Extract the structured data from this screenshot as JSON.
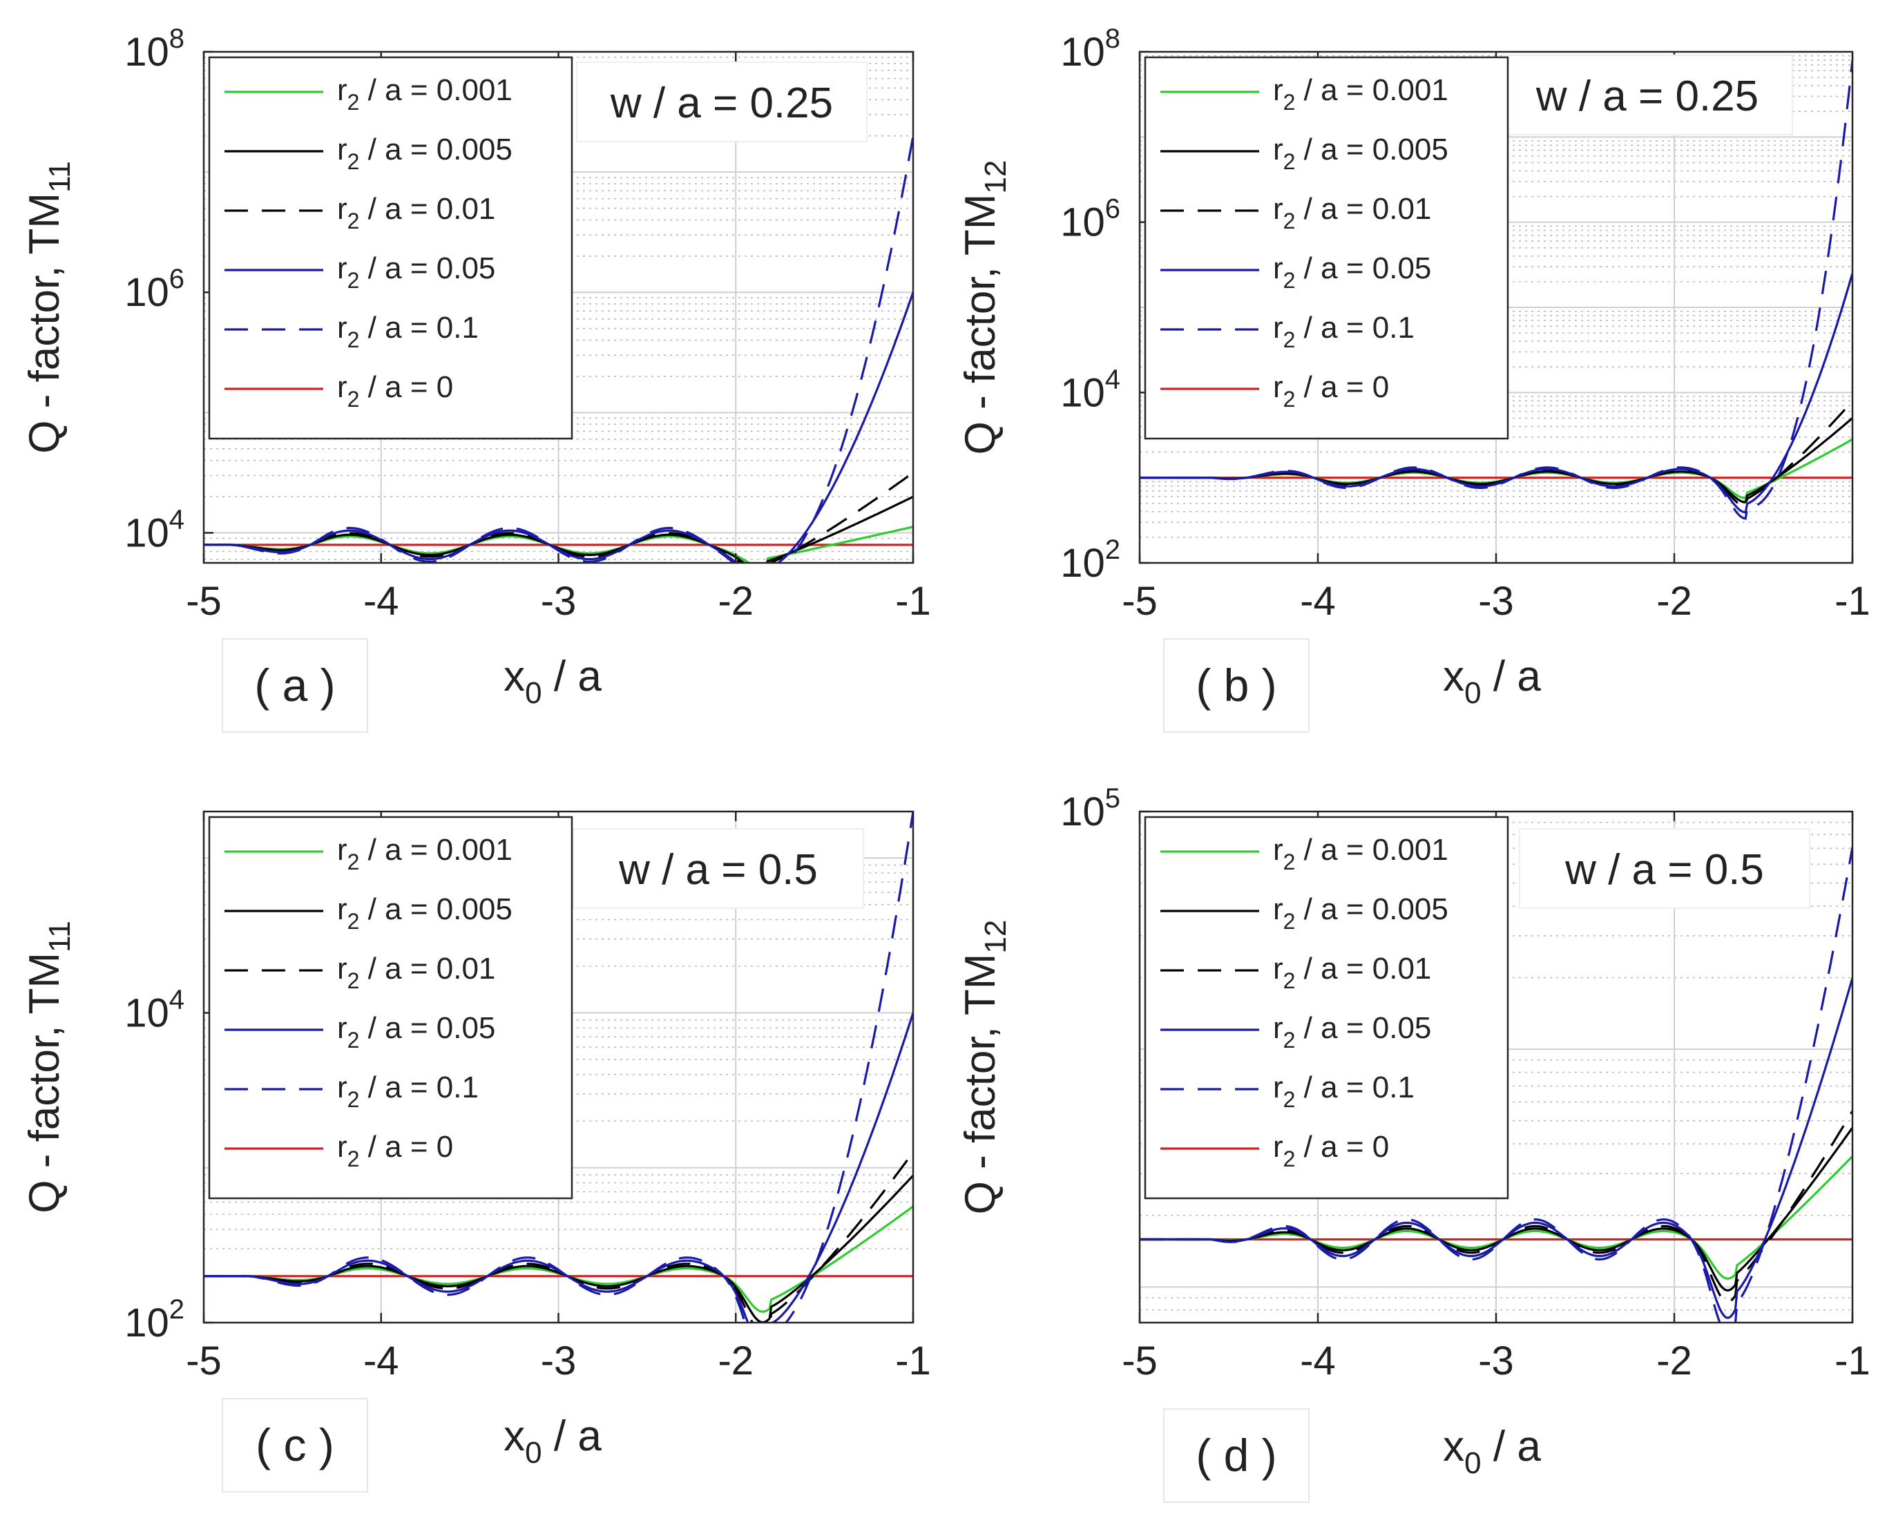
{
  "figure": {
    "panels": [
      {
        "id": "a",
        "panel_label": "( a )",
        "annotation": "w / a = 0.25",
        "ylabel_main": "Q - factor, TM",
        "ylabel_sub": "11",
        "xlabel_main": "x",
        "xlabel_sub": "0",
        "xlabel_tail": " / a",
        "legend": [
          {
            "pre": "r",
            "sub": "2",
            "post": " / a = 0.001",
            "color": "#2ecc2e",
            "dash": "solid"
          },
          {
            "pre": "r",
            "sub": "2",
            "post": " / a = 0.005",
            "color": "#000000",
            "dash": "solid"
          },
          {
            "pre": "r",
            "sub": "2",
            "post": " / a = 0.01",
            "color": "#000000",
            "dash": "dashed"
          },
          {
            "pre": "r",
            "sub": "2",
            "post": " / a = 0.05",
            "color": "#1a1aa8",
            "dash": "solid"
          },
          {
            "pre": "r",
            "sub": "2",
            "post": " / a = 0.1",
            "color": "#1a1aa8",
            "dash": "dashed"
          },
          {
            "pre": "r",
            "sub": "2",
            "post": " / a = 0",
            "color": "#d42020",
            "dash": "solid"
          }
        ]
      },
      {
        "id": "b",
        "panel_label": "( b )",
        "annotation": "w / a = 0.25",
        "ylabel_main": "Q - factor, TM",
        "ylabel_sub": "12",
        "xlabel_main": "x",
        "xlabel_sub": "0",
        "xlabel_tail": " / a",
        "legend": [
          {
            "pre": "r",
            "sub": "2",
            "post": " / a = 0.001",
            "color": "#2ecc2e",
            "dash": "solid"
          },
          {
            "pre": "r",
            "sub": "2",
            "post": " / a = 0.005",
            "color": "#000000",
            "dash": "solid"
          },
          {
            "pre": "r",
            "sub": "2",
            "post": " / a = 0.01",
            "color": "#000000",
            "dash": "dashed"
          },
          {
            "pre": "r",
            "sub": "2",
            "post": " / a = 0.05",
            "color": "#1a1aa8",
            "dash": "solid"
          },
          {
            "pre": "r",
            "sub": "2",
            "post": " / a = 0.1",
            "color": "#1a1aa8",
            "dash": "dashed"
          },
          {
            "pre": "r",
            "sub": "2",
            "post": " / a = 0",
            "color": "#d42020",
            "dash": "solid"
          }
        ]
      },
      {
        "id": "c",
        "panel_label": "( c )",
        "annotation": "w / a = 0.5",
        "ylabel_main": "Q - factor, TM",
        "ylabel_sub": "11",
        "xlabel_main": "x",
        "xlabel_sub": "0",
        "xlabel_tail": " / a",
        "legend": [
          {
            "pre": "r",
            "sub": "2",
            "post": " / a = 0.001",
            "color": "#2ecc2e",
            "dash": "solid"
          },
          {
            "pre": "r",
            "sub": "2",
            "post": " / a = 0.005",
            "color": "#000000",
            "dash": "solid"
          },
          {
            "pre": "r",
            "sub": "2",
            "post": " / a = 0.01",
            "color": "#000000",
            "dash": "dashed"
          },
          {
            "pre": "r",
            "sub": "2",
            "post": " / a = 0.05",
            "color": "#1a1aa8",
            "dash": "solid"
          },
          {
            "pre": "r",
            "sub": "2",
            "post": " / a = 0.1",
            "color": "#1a1aa8",
            "dash": "dashed"
          },
          {
            "pre": "r",
            "sub": "2",
            "post": " / a = 0",
            "color": "#d42020",
            "dash": "solid"
          }
        ]
      },
      {
        "id": "d",
        "panel_label": "( d )",
        "annotation": "w / a = 0.5",
        "ylabel_main": "Q - factor, TM",
        "ylabel_sub": "12",
        "xlabel_main": "x",
        "xlabel_sub": "0",
        "xlabel_tail": " / a",
        "legend": [
          {
            "pre": "r",
            "sub": "2",
            "post": " / a = 0.001",
            "color": "#2ecc2e",
            "dash": "solid"
          },
          {
            "pre": "r",
            "sub": "2",
            "post": " / a = 0.005",
            "color": "#000000",
            "dash": "solid"
          },
          {
            "pre": "r",
            "sub": "2",
            "post": " / a = 0.01",
            "color": "#000000",
            "dash": "dashed"
          },
          {
            "pre": "r",
            "sub": "2",
            "post": " / a = 0.05",
            "color": "#1a1aa8",
            "dash": "solid"
          },
          {
            "pre": "r",
            "sub": "2",
            "post": " / a = 0.1",
            "color": "#1a1aa8",
            "dash": "dashed"
          },
          {
            "pre": "r",
            "sub": "2",
            "post": " / a = 0",
            "color": "#d42020",
            "dash": "solid"
          }
        ]
      }
    ]
  },
  "chart_data": [
    {
      "type": "line",
      "panel": "a",
      "title": "",
      "xlabel": "x0 / a",
      "ylabel": "Q - factor, TM11",
      "xlim": [
        -5,
        -1
      ],
      "ylim_log10": [
        3.75,
        8
      ],
      "yscale": "log",
      "xticks": [
        -5,
        -4,
        -3,
        -2,
        -1
      ],
      "yticks": [
        {
          "exp": 4,
          "base": "10",
          "label": "4"
        },
        {
          "exp": 6,
          "base": "10",
          "label": "6"
        },
        {
          "exp": 8,
          "base": "10",
          "label": "8"
        }
      ],
      "grid": true,
      "legend_position": "top-left",
      "series_params": {
        "base": 3.9,
        "amp": 0.07,
        "period": 0.9,
        "phase": -4.4,
        "wiggle_start": -4.9,
        "end_dip_x": -1.85,
        "end_dip_depth": 0.12,
        "x_rise_start": -1.82
      },
      "series": [
        {
          "name": "r2 / a = 0.001",
          "end_log10": 4.05,
          "wiggle_scale": 1.0
        },
        {
          "name": "r2 / a = 0.005",
          "end_log10": 4.3,
          "wiggle_scale": 1.2
        },
        {
          "name": "r2 / a = 0.01",
          "end_log10": 4.5,
          "wiggle_scale": 1.4
        },
        {
          "name": "r2 / a = 0.05",
          "end_log10": 6.0,
          "wiggle_scale": 1.7
        },
        {
          "name": "r2 / a = 0.1",
          "end_log10": 7.3,
          "wiggle_scale": 2.0
        },
        {
          "name": "r2 / a = 0",
          "end_log10": 3.9,
          "wiggle_scale": 0.0
        }
      ]
    },
    {
      "type": "line",
      "panel": "b",
      "title": "",
      "xlabel": "x0 / a",
      "ylabel": "Q - factor, TM12",
      "xlim": [
        -5,
        -1
      ],
      "ylim_log10": [
        2,
        8
      ],
      "yscale": "log",
      "xticks": [
        -5,
        -4,
        -3,
        -2,
        -1
      ],
      "yticks": [
        {
          "exp": 2,
          "base": "10",
          "label": "2"
        },
        {
          "exp": 4,
          "base": "10",
          "label": "4"
        },
        {
          "exp": 6,
          "base": "10",
          "label": "6"
        },
        {
          "exp": 8,
          "base": "10",
          "label": "8"
        }
      ],
      "grid": true,
      "legend_position": "top-left",
      "series_params": {
        "base": 3.0,
        "amp": 0.06,
        "period": 0.75,
        "phase": -4.4,
        "wiggle_start": -4.6,
        "end_dip_x": -1.6,
        "end_dip_depth": 0.18,
        "x_rise_start": -1.6
      },
      "series": [
        {
          "name": "r2 / a = 0.001",
          "end_log10": 3.45,
          "wiggle_scale": 1.0
        },
        {
          "name": "r2 / a = 0.005",
          "end_log10": 3.7,
          "wiggle_scale": 1.2
        },
        {
          "name": "r2 / a = 0.01",
          "end_log10": 3.9,
          "wiggle_scale": 1.4
        },
        {
          "name": "r2 / a = 0.05",
          "end_log10": 5.4,
          "wiggle_scale": 1.7
        },
        {
          "name": "r2 / a = 0.1",
          "end_log10": 7.9,
          "wiggle_scale": 2.0
        },
        {
          "name": "r2 / a = 0",
          "end_log10": 3.0,
          "wiggle_scale": 0.0
        }
      ]
    },
    {
      "type": "line",
      "panel": "c",
      "title": "",
      "xlabel": "x0 / a",
      "ylabel": "Q - factor, TM11",
      "xlim": [
        -5,
        -1
      ],
      "ylim_log10": [
        2,
        5.3
      ],
      "yscale": "log",
      "xticks": [
        -5,
        -4,
        -3,
        -2,
        -1
      ],
      "yticks": [
        {
          "exp": 2,
          "base": "10",
          "label": "2"
        },
        {
          "exp": 4,
          "base": "10",
          "label": "4"
        }
      ],
      "grid": true,
      "legend_position": "top-left",
      "series_params": {
        "base": 2.3,
        "amp": 0.05,
        "period": 0.9,
        "phase": -4.3,
        "wiggle_start": -4.8,
        "end_dip_x": -1.85,
        "end_dip_depth": 0.18,
        "x_rise_start": -1.8
      },
      "series": [
        {
          "name": "r2 / a = 0.001",
          "end_log10": 2.75,
          "wiggle_scale": 1.0
        },
        {
          "name": "r2 / a = 0.005",
          "end_log10": 2.95,
          "wiggle_scale": 1.3
        },
        {
          "name": "r2 / a = 0.01",
          "end_log10": 3.1,
          "wiggle_scale": 1.6
        },
        {
          "name": "r2 / a = 0.05",
          "end_log10": 4.0,
          "wiggle_scale": 2.0
        },
        {
          "name": "r2 / a = 0.1",
          "end_log10": 5.3,
          "wiggle_scale": 2.4
        },
        {
          "name": "r2 / a = 0",
          "end_log10": 2.3,
          "wiggle_scale": 0.0
        }
      ]
    },
    {
      "type": "line",
      "panel": "d",
      "title": "",
      "xlabel": "x0 / a",
      "ylabel": "Q - factor, TM12",
      "xlim": [
        -5,
        -1
      ],
      "ylim_log10": [
        2.85,
        5
      ],
      "yscale": "log",
      "xticks": [
        -5,
        -4,
        -3,
        -2,
        -1
      ],
      "yticks": [
        {
          "exp": 5,
          "base": "10",
          "label": "5"
        }
      ],
      "grid": true,
      "legend_position": "top-left",
      "series_params": {
        "base": 3.2,
        "amp": 0.035,
        "period": 0.72,
        "phase": -4.4,
        "wiggle_start": -4.6,
        "end_dip_x": -1.7,
        "end_dip_depth": 0.13,
        "x_rise_start": -1.65
      },
      "series": [
        {
          "name": "r2 / a = 0.001",
          "end_log10": 3.55,
          "wiggle_scale": 1.0
        },
        {
          "name": "r2 / a = 0.005",
          "end_log10": 3.67,
          "wiggle_scale": 1.3
        },
        {
          "name": "r2 / a = 0.01",
          "end_log10": 3.74,
          "wiggle_scale": 1.6
        },
        {
          "name": "r2 / a = 0.05",
          "end_log10": 4.3,
          "wiggle_scale": 2.0
        },
        {
          "name": "r2 / a = 0.1",
          "end_log10": 4.85,
          "wiggle_scale": 2.4
        },
        {
          "name": "r2 / a = 0",
          "end_log10": 3.2,
          "wiggle_scale": 0.0
        }
      ]
    }
  ]
}
